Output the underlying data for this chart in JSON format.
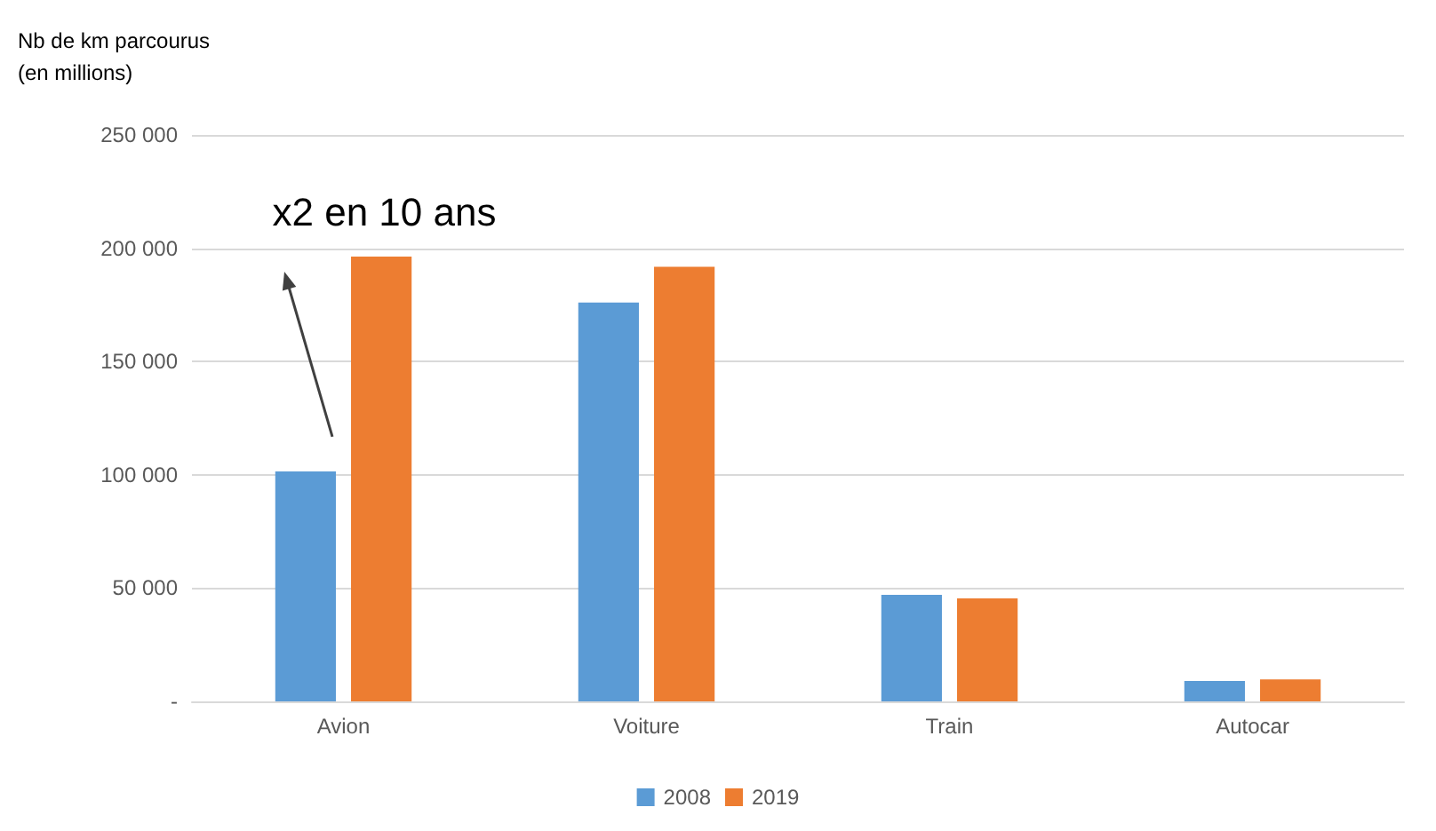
{
  "chart_data": {
    "type": "bar",
    "ylabel": "Nb de km parcourus\n(en millions)",
    "categories": [
      "Avion",
      "Voiture",
      "Train",
      "Autocar"
    ],
    "series": [
      {
        "name": "2008",
        "color": "#5b9bd5",
        "values": [
          101500,
          176000,
          47000,
          9000
        ]
      },
      {
        "name": "2019",
        "color": "#ed7d31",
        "values": [
          196300,
          191800,
          45500,
          9700
        ]
      }
    ],
    "ylim": [
      0,
      250000
    ],
    "yticks": [
      {
        "value": 0,
        "label": "-"
      },
      {
        "value": 50000,
        "label": "50 000"
      },
      {
        "value": 100000,
        "label": "100 000"
      },
      {
        "value": 150000,
        "label": "150 000"
      },
      {
        "value": 200000,
        "label": "200 000"
      },
      {
        "value": 250000,
        "label": "250 000"
      }
    ],
    "grid": "y",
    "legend": "bottom",
    "annotations": [
      "x2 en 10 ans"
    ]
  }
}
